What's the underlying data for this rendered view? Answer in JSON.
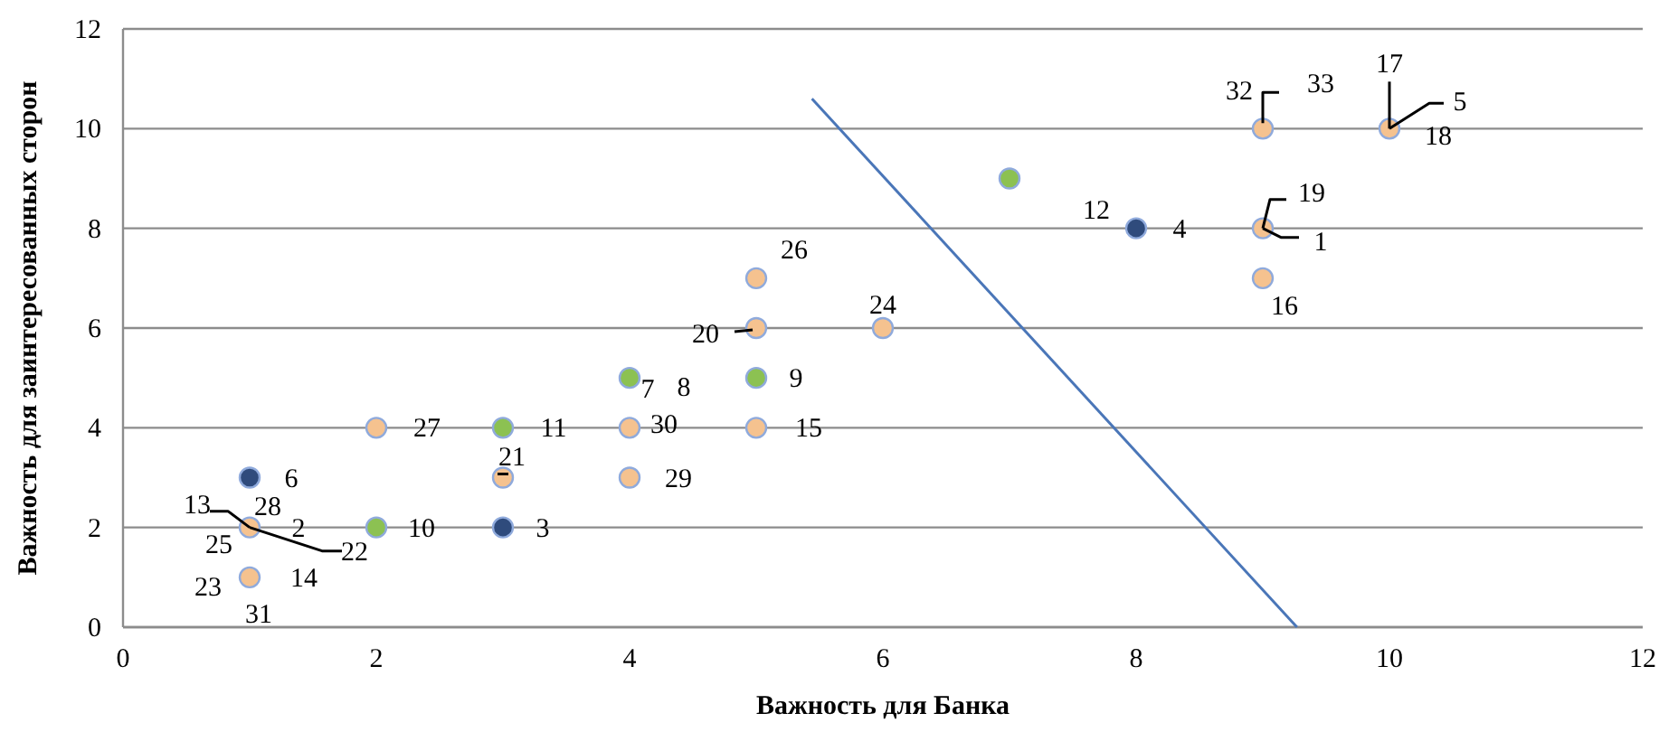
{
  "chart_data": {
    "type": "scatter",
    "xlabel": "Важность для Банка",
    "ylabel": "Важность для заинтересованных сторон",
    "xlim": [
      0,
      12
    ],
    "ylim": [
      0,
      12
    ],
    "xticks": [
      0,
      2,
      4,
      6,
      8,
      10,
      12
    ],
    "yticks": [
      0,
      2,
      4,
      6,
      8,
      10,
      12
    ],
    "grid": "y",
    "marker": "circle",
    "series": [
      {
        "color": "#2f4b7c",
        "x": [
          1,
          3,
          8
        ],
        "values": [
          3,
          2,
          8
        ]
      },
      {
        "color": "#8cc152",
        "x": [
          7,
          4,
          5,
          3,
          2
        ],
        "values": [
          9,
          5,
          5,
          4,
          2
        ]
      },
      {
        "color": "#f5c28f",
        "x": [
          9,
          10,
          9,
          9,
          5,
          5,
          6,
          4,
          5,
          4,
          3,
          2,
          1,
          1
        ],
        "values": [
          10,
          10,
          8,
          7,
          7,
          6,
          6,
          4,
          4,
          3,
          3,
          4,
          2,
          1
        ]
      },
      {
        "type": "line",
        "marker": "none",
        "color": "#4a76b8",
        "x": [
          5.44,
          9.27
        ],
        "values": [
          10.6,
          0
        ]
      }
    ],
    "annotations": [
      {
        "text": "6",
        "x": 1,
        "y": 3
      },
      {
        "text": "3",
        "x": 3,
        "y": 2
      },
      {
        "text": "4",
        "x": 8,
        "y": 8
      },
      {
        "text": "12",
        "x": 7,
        "y": 9
      },
      {
        "text": "7",
        "x": 4,
        "y": 5
      },
      {
        "text": "8",
        "x": 4,
        "y": 5
      },
      {
        "text": "9",
        "x": 5,
        "y": 5
      },
      {
        "text": "11",
        "x": 3,
        "y": 4
      },
      {
        "text": "10",
        "x": 2,
        "y": 2
      },
      {
        "text": "32",
        "x": 9,
        "y": 10
      },
      {
        "text": "33",
        "x": 9,
        "y": 10
      },
      {
        "text": "17",
        "x": 10,
        "y": 10
      },
      {
        "text": "5",
        "x": 10,
        "y": 10
      },
      {
        "text": "18",
        "x": 10,
        "y": 10
      },
      {
        "text": "19",
        "x": 9,
        "y": 8
      },
      {
        "text": "1",
        "x": 9,
        "y": 8
      },
      {
        "text": "16",
        "x": 9,
        "y": 7
      },
      {
        "text": "26",
        "x": 5,
        "y": 7
      },
      {
        "text": "20",
        "x": 5,
        "y": 6
      },
      {
        "text": "24",
        "x": 6,
        "y": 6
      },
      {
        "text": "30",
        "x": 4,
        "y": 4
      },
      {
        "text": "15",
        "x": 5,
        "y": 4
      },
      {
        "text": "29",
        "x": 4,
        "y": 3
      },
      {
        "text": "21",
        "x": 3,
        "y": 3
      },
      {
        "text": "27",
        "x": 2,
        "y": 4
      },
      {
        "text": "13",
        "x": 1,
        "y": 2
      },
      {
        "text": "28",
        "x": 1,
        "y": 2
      },
      {
        "text": "2",
        "x": 1,
        "y": 2
      },
      {
        "text": "25",
        "x": 1,
        "y": 2
      },
      {
        "text": "22",
        "x": 1,
        "y": 2
      },
      {
        "text": "23",
        "x": 1,
        "y": 1
      },
      {
        "text": "14",
        "x": 1,
        "y": 1
      },
      {
        "text": "31",
        "x": 1,
        "y": 1
      }
    ]
  }
}
